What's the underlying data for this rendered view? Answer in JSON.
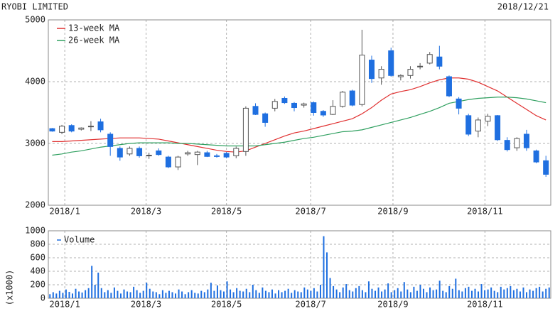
{
  "chart_data": [
    {
      "type": "candlestick",
      "title": "RYOBI LIMITED",
      "subtitle": "2018/12/21",
      "x": [
        0,
        1,
        2,
        3,
        4,
        5,
        6,
        7,
        8,
        9,
        10,
        11,
        12,
        13,
        14,
        15,
        16,
        17,
        18,
        19,
        20,
        21,
        22,
        23,
        24,
        25,
        26,
        27,
        28,
        29,
        30,
        31,
        32,
        33,
        34,
        35,
        36,
        37,
        38,
        39,
        40,
        41,
        42,
        43,
        44,
        45,
        46,
        47,
        48,
        49,
        50,
        51
      ],
      "open": [
        3240,
        3180,
        3290,
        3230,
        3270,
        3350,
        3150,
        2920,
        2830,
        2920,
        2800,
        2880,
        2780,
        2620,
        2830,
        2820,
        2850,
        2800,
        2840,
        2800,
        2870,
        3600,
        3480,
        3570,
        3730,
        3650,
        3620,
        3660,
        3520,
        3470,
        3600,
        3850,
        3630,
        4350,
        4060,
        4500,
        4080,
        4100,
        4240,
        4300,
        4400,
        4080,
        3720,
        3450,
        3200,
        3360,
        3450,
        3050,
        2930,
        3150,
        2880,
        2720
      ],
      "high": [
        3250,
        3300,
        3310,
        3260,
        3360,
        3400,
        3180,
        2950,
        2950,
        2950,
        2850,
        2920,
        2800,
        2800,
        2880,
        2880,
        2880,
        2830,
        2860,
        2950,
        3600,
        3650,
        3500,
        3720,
        3760,
        3670,
        3660,
        3680,
        3540,
        3700,
        3850,
        3870,
        4840,
        4420,
        4250,
        4550,
        4120,
        4250,
        4300,
        4480,
        4580,
        4100,
        3750,
        3480,
        3420,
        3480,
        3460,
        3100,
        3100,
        3220,
        2900,
        2800
      ],
      "low": [
        3190,
        3150,
        3180,
        3210,
        3200,
        3180,
        2800,
        2720,
        2800,
        2770,
        2750,
        2800,
        2600,
        2570,
        2800,
        2650,
        2780,
        2770,
        2760,
        2760,
        2800,
        3460,
        3270,
        3520,
        3640,
        3520,
        3580,
        3450,
        3430,
        3460,
        3580,
        3600,
        3600,
        3980,
        3950,
        4080,
        4020,
        4050,
        4200,
        4280,
        4200,
        3750,
        3470,
        3120,
        3100,
        3280,
        3040,
        2870,
        2880,
        2880,
        2680,
        2460
      ],
      "close": [
        3200,
        3280,
        3200,
        3250,
        3280,
        3220,
        2950,
        2780,
        2920,
        2800,
        2810,
        2820,
        2620,
        2780,
        2850,
        2860,
        2790,
        2790,
        2780,
        2920,
        3570,
        3470,
        3340,
        3680,
        3660,
        3580,
        3640,
        3500,
        3460,
        3600,
        3830,
        3620,
        4430,
        4050,
        4200,
        4100,
        4100,
        4200,
        4250,
        4440,
        4250,
        3770,
        3570,
        3150,
        3380,
        3440,
        3060,
        2900,
        3080,
        2930,
        2700,
        2500
      ],
      "colors": {
        "up": "#ffffff",
        "down": "#1f6fe0",
        "outline": "#555555"
      },
      "series": [
        {
          "name": "13-week MA",
          "color": "#e03030",
          "values": [
            3030,
            3030,
            3040,
            3050,
            3060,
            3070,
            3080,
            3090,
            3090,
            3090,
            3080,
            3070,
            3040,
            3010,
            2980,
            2950,
            2920,
            2890,
            2870,
            2860,
            2880,
            2940,
            3000,
            3060,
            3120,
            3170,
            3200,
            3240,
            3280,
            3320,
            3360,
            3400,
            3480,
            3580,
            3700,
            3800,
            3840,
            3870,
            3920,
            3980,
            4030,
            4060,
            4060,
            4040,
            3990,
            3920,
            3850,
            3750,
            3650,
            3550,
            3450,
            3380
          ]
        },
        {
          "name": "26-week MA",
          "color": "#30a060",
          "values": [
            2810,
            2830,
            2860,
            2880,
            2910,
            2940,
            2960,
            2980,
            3000,
            3010,
            3010,
            3010,
            3010,
            3000,
            3000,
            2990,
            2980,
            2970,
            2960,
            2960,
            2960,
            2960,
            2980,
            3000,
            3020,
            3050,
            3080,
            3100,
            3130,
            3160,
            3190,
            3200,
            3220,
            3260,
            3300,
            3340,
            3380,
            3420,
            3470,
            3520,
            3580,
            3650,
            3680,
            3710,
            3730,
            3740,
            3750,
            3750,
            3740,
            3720,
            3690,
            3660
          ]
        }
      ],
      "xlim": [
        -0.4,
        51.5
      ],
      "xticks": [
        {
          "value": 1.3,
          "label": "2018/1"
        },
        {
          "value": 9.7,
          "label": "2018/3"
        },
        {
          "value": 18.0,
          "label": "2018/5"
        },
        {
          "value": 26.7,
          "label": "2018/7"
        },
        {
          "value": 35.2,
          "label": "2018/9"
        },
        {
          "value": 44.7,
          "label": "2018/11"
        }
      ],
      "ylim": [
        2000,
        5000
      ],
      "yticks": [
        2000,
        3000,
        4000,
        5000
      ],
      "grid": true
    },
    {
      "type": "bar",
      "y_label": "(x1000)",
      "series": [
        {
          "name": "Volume",
          "color": "#1f6fe0",
          "values": [
            60,
            90,
            70,
            110,
            80,
            130,
            95,
            70,
            140,
            100,
            85,
            120,
            150,
            480,
            200,
            380,
            150,
            90,
            120,
            80,
            160,
            110,
            70,
            130,
            100,
            90,
            170,
            120,
            80,
            110,
            230,
            140,
            100,
            90,
            60,
            120,
            80,
            110,
            90,
            70,
            130,
            100,
            60,
            90,
            120,
            80,
            70,
            110,
            90,
            130,
            230,
            110,
            190,
            120,
            100,
            250,
            130,
            90,
            150,
            110,
            100,
            140,
            90,
            200,
            120,
            80,
            160,
            110,
            90,
            130,
            70,
            120,
            90,
            110,
            140,
            80,
            120,
            100,
            90,
            160,
            130,
            110,
            150,
            100,
            200,
            920,
            680,
            300,
            180,
            130,
            90,
            160,
            210,
            120,
            100,
            150,
            180,
            120,
            90,
            250,
            140,
            110,
            160,
            100,
            130,
            220,
            90,
            120,
            150,
            100,
            240,
            130,
            90,
            170,
            110,
            200,
            140,
            90,
            160,
            120,
            130,
            260,
            110,
            90,
            180,
            140,
            290,
            120,
            100,
            150,
            170,
            110,
            140,
            100,
            210,
            120,
            130,
            160,
            110,
            90,
            170,
            130,
            150,
            180,
            120,
            140,
            100,
            160,
            90,
            130,
            110,
            150,
            170,
            100,
            140,
            160
          ]
        }
      ],
      "xlim": [
        -0.4,
        51.5
      ],
      "xticks": [
        {
          "value": 1.3,
          "label": "2018/1"
        },
        {
          "value": 9.7,
          "label": "2018/3"
        },
        {
          "value": 18.0,
          "label": "2018/5"
        },
        {
          "value": 26.7,
          "label": "2018/7"
        },
        {
          "value": 35.2,
          "label": "2018/9"
        },
        {
          "value": 44.7,
          "label": "2018/11"
        }
      ],
      "ylim": [
        0,
        1000
      ],
      "yticks": [
        0,
        200,
        400,
        600,
        800,
        1000
      ],
      "grid": true
    }
  ]
}
